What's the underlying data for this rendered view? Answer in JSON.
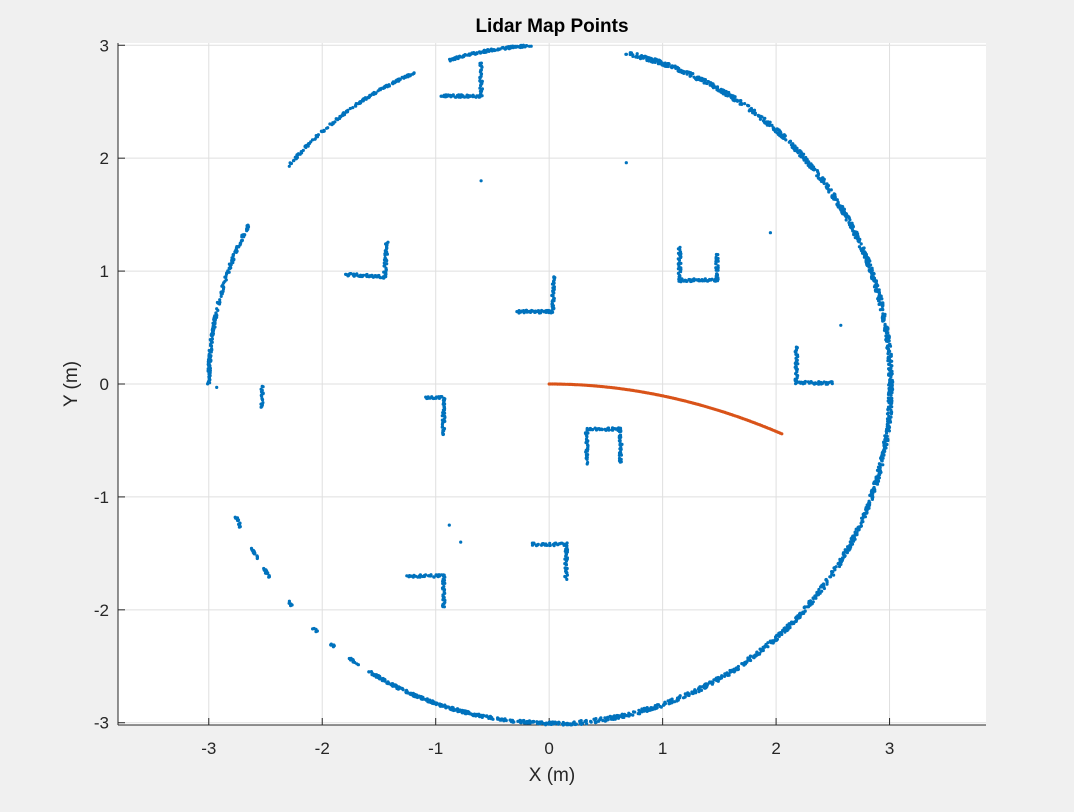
{
  "chart_data": {
    "type": "scatter",
    "title": "Lidar Map Points",
    "xlabel": "X (m)",
    "ylabel": "Y (m)",
    "xlim": [
      -3.8,
      3.85
    ],
    "ylim": [
      -3.02,
      3.02
    ],
    "xticks": [
      -3,
      -2,
      -1,
      0,
      1,
      2,
      3
    ],
    "xtick_labels": [
      "-3",
      "-2",
      "-1",
      "0",
      "1",
      "2",
      "3"
    ],
    "yticks": [
      -3,
      -2,
      -1,
      0,
      1,
      2,
      3
    ],
    "ytick_labels": [
      "-3",
      "-2",
      "-1",
      "0",
      "1",
      "2",
      "3"
    ],
    "grid": true,
    "colors": {
      "map_points": "#0072bd",
      "trajectory": "#d95319",
      "axes_background": "#ffffff",
      "figure_background": "#f0f0f0",
      "grid": "#dfdfdf",
      "axis": "#262626"
    },
    "series": [
      {
        "role": "map_points",
        "segments": [
          {
            "kind": "arc",
            "cx": 0,
            "cy": 0,
            "r": 3.01,
            "from_deg": -92,
            "to_deg": 77,
            "count": 1400,
            "jitter": 0.018
          },
          {
            "kind": "arc",
            "cx": 0,
            "cy": 0,
            "r": 3.0,
            "from_deg": -122,
            "to_deg": -92,
            "count": 260,
            "jitter": 0.012
          },
          {
            "kind": "arc",
            "cx": 0,
            "cy": 0,
            "r": 3.0,
            "from_deg": 93,
            "to_deg": 107,
            "count": 110,
            "jitter": 0.01
          },
          {
            "kind": "arc",
            "cx": 0,
            "cy": 0,
            "r": 3.0,
            "from_deg": 113,
            "to_deg": 140,
            "count": 150,
            "jitter": 0.01
          },
          {
            "kind": "arc",
            "cx": 0,
            "cy": 0,
            "r": 3.0,
            "from_deg": 152,
            "to_deg": 180,
            "count": 200,
            "jitter": 0.012
          },
          {
            "kind": "arc",
            "cx": 0,
            "cy": 0,
            "r": 3.0,
            "from_deg": -157,
            "to_deg": -155,
            "count": 14,
            "jitter": 0.01
          },
          {
            "kind": "arc",
            "cx": 0,
            "cy": 0,
            "r": 3.0,
            "from_deg": -151,
            "to_deg": -149,
            "count": 16,
            "jitter": 0.01
          },
          {
            "kind": "arc",
            "cx": 0,
            "cy": 0,
            "r": 3.0,
            "from_deg": -147,
            "to_deg": -145,
            "count": 16,
            "jitter": 0.01
          },
          {
            "kind": "arc",
            "cx": 0,
            "cy": 0,
            "r": 3.0,
            "from_deg": -140,
            "to_deg": -139,
            "count": 8,
            "jitter": 0.01
          },
          {
            "kind": "arc",
            "cx": 0,
            "cy": 0,
            "r": 3.0,
            "from_deg": -134,
            "to_deg": -133,
            "count": 6,
            "jitter": 0.01
          },
          {
            "kind": "arc",
            "cx": 0,
            "cy": 0,
            "r": 3.0,
            "from_deg": -130,
            "to_deg": -129,
            "count": 6,
            "jitter": 0.01
          },
          {
            "kind": "arc",
            "cx": 0,
            "cy": 0,
            "r": 3.0,
            "from_deg": -126,
            "to_deg": -124,
            "count": 14,
            "jitter": 0.01
          },
          {
            "kind": "line",
            "p0": [
              -0.95,
              2.55
            ],
            "p1": [
              -0.6,
              2.55
            ],
            "count": 45,
            "jitter": 0.012
          },
          {
            "kind": "line",
            "p0": [
              -0.6,
              2.55
            ],
            "p1": [
              -0.6,
              2.85
            ],
            "count": 30,
            "jitter": 0.012
          },
          {
            "kind": "line",
            "p0": [
              -1.8,
              0.97
            ],
            "p1": [
              -1.45,
              0.95
            ],
            "count": 45,
            "jitter": 0.012
          },
          {
            "kind": "line",
            "p0": [
              -1.45,
              0.95
            ],
            "p1": [
              -1.43,
              1.25
            ],
            "count": 35,
            "jitter": 0.012
          },
          {
            "kind": "line",
            "p0": [
              -0.28,
              0.64
            ],
            "p1": [
              0.03,
              0.64
            ],
            "count": 40,
            "jitter": 0.012
          },
          {
            "kind": "line",
            "p0": [
              0.03,
              0.64
            ],
            "p1": [
              0.04,
              0.95
            ],
            "count": 35,
            "jitter": 0.012
          },
          {
            "kind": "line",
            "p0": [
              1.15,
              1.2
            ],
            "p1": [
              1.15,
              0.9
            ],
            "count": 35,
            "jitter": 0.012
          },
          {
            "kind": "line",
            "p0": [
              1.15,
              0.92
            ],
            "p1": [
              1.48,
              0.92
            ],
            "count": 40,
            "jitter": 0.012
          },
          {
            "kind": "line",
            "p0": [
              1.48,
              0.92
            ],
            "p1": [
              1.48,
              1.15
            ],
            "count": 25,
            "jitter": 0.012
          },
          {
            "kind": "line",
            "p0": [
              2.18,
              0.33
            ],
            "p1": [
              2.18,
              0.02
            ],
            "count": 35,
            "jitter": 0.012
          },
          {
            "kind": "line",
            "p0": [
              2.18,
              0.01
            ],
            "p1": [
              2.5,
              0.01
            ],
            "count": 35,
            "jitter": 0.012
          },
          {
            "kind": "line",
            "p0": [
              -1.09,
              -0.12
            ],
            "p1": [
              -0.93,
              -0.12
            ],
            "count": 18,
            "jitter": 0.01
          },
          {
            "kind": "line",
            "p0": [
              -0.93,
              -0.12
            ],
            "p1": [
              -0.93,
              -0.45
            ],
            "count": 35,
            "jitter": 0.012
          },
          {
            "kind": "line",
            "p0": [
              -2.53,
              -0.02
            ],
            "p1": [
              -2.53,
              -0.2
            ],
            "count": 18,
            "jitter": 0.01
          },
          {
            "kind": "line",
            "p0": [
              0.33,
              -0.7
            ],
            "p1": [
              0.33,
              -0.4
            ],
            "count": 30,
            "jitter": 0.012
          },
          {
            "kind": "line",
            "p0": [
              0.33,
              -0.4
            ],
            "p1": [
              0.63,
              -0.4
            ],
            "count": 35,
            "jitter": 0.012
          },
          {
            "kind": "line",
            "p0": [
              0.63,
              -0.4
            ],
            "p1": [
              0.63,
              -0.7
            ],
            "count": 30,
            "jitter": 0.012
          },
          {
            "kind": "line",
            "p0": [
              -0.15,
              -1.42
            ],
            "p1": [
              0.15,
              -1.42
            ],
            "count": 35,
            "jitter": 0.012
          },
          {
            "kind": "line",
            "p0": [
              0.15,
              -1.42
            ],
            "p1": [
              0.15,
              -1.72
            ],
            "count": 32,
            "jitter": 0.012
          },
          {
            "kind": "line",
            "p0": [
              -1.25,
              -1.7
            ],
            "p1": [
              -0.93,
              -1.7
            ],
            "count": 35,
            "jitter": 0.012
          },
          {
            "kind": "line",
            "p0": [
              -0.93,
              -1.7
            ],
            "p1": [
              -0.93,
              -1.98
            ],
            "count": 30,
            "jitter": 0.012
          },
          {
            "kind": "points",
            "xy": [
              [
                -0.6,
                1.8
              ],
              [
                0.68,
                1.96
              ],
              [
                1.95,
                1.34
              ],
              [
                2.57,
                0.52
              ],
              [
                -2.93,
                -0.03
              ],
              [
                -0.88,
                -1.25
              ],
              [
                -0.78,
                -1.4
              ]
            ]
          }
        ]
      },
      {
        "role": "trajectory",
        "segments": [
          {
            "kind": "curve",
            "from_x": 0,
            "to_x": 2.05,
            "k": 0.105,
            "count": 140
          }
        ]
      }
    ]
  }
}
